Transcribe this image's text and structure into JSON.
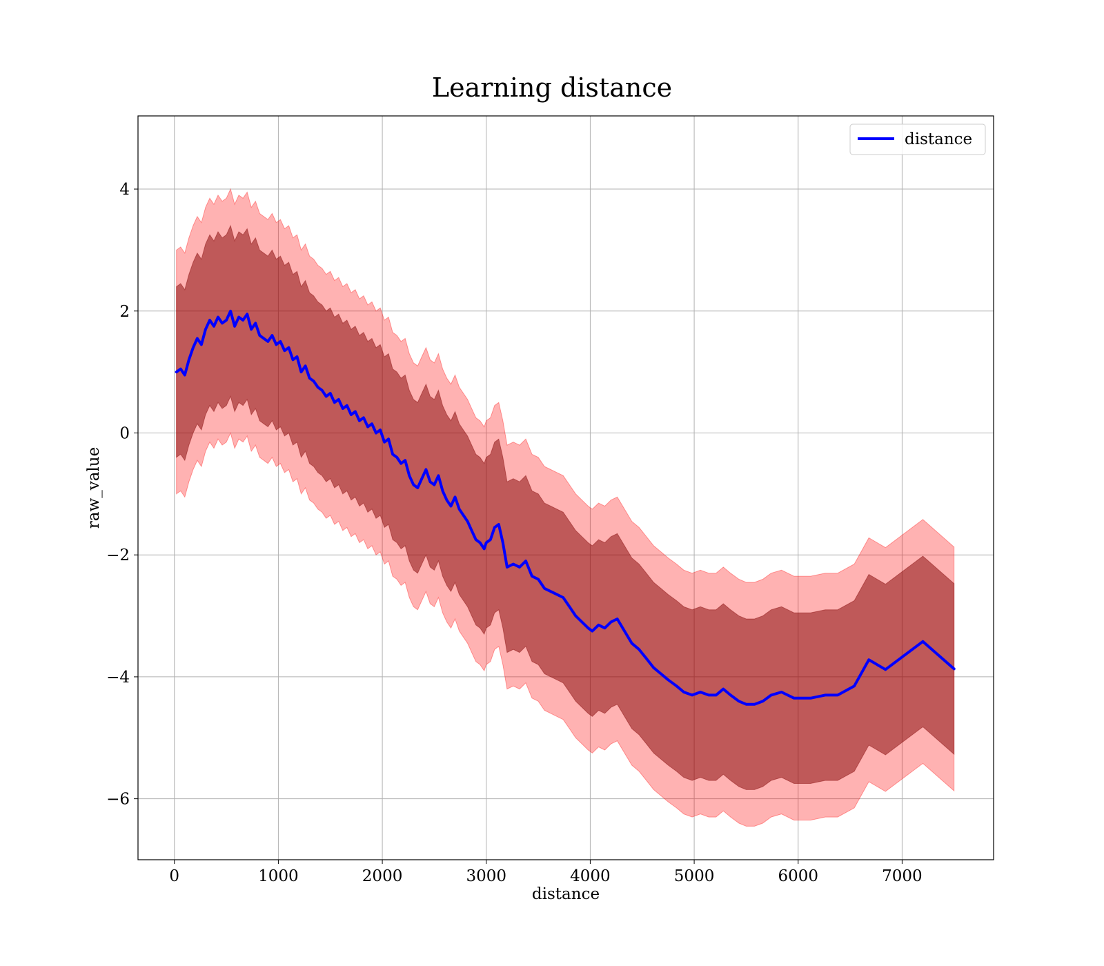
{
  "chart_data": {
    "type": "line",
    "title": "Learning distance",
    "xlabel": "distance",
    "ylabel": "raw_value",
    "xlim": [
      -350,
      7880
    ],
    "ylim": [
      -7.0,
      5.2
    ],
    "xticks": [
      {
        "value": 0,
        "label": "0"
      },
      {
        "value": 1000,
        "label": "1000"
      },
      {
        "value": 2000,
        "label": "2000"
      },
      {
        "value": 3000,
        "label": "3000"
      },
      {
        "value": 4000,
        "label": "4000"
      },
      {
        "value": 5000,
        "label": "5000"
      },
      {
        "value": 6000,
        "label": "6000"
      },
      {
        "value": 7000,
        "label": "7000"
      }
    ],
    "yticks": [
      {
        "value": 4,
        "label": "4"
      },
      {
        "value": 2,
        "label": "2"
      },
      {
        "value": 0,
        "label": "0"
      },
      {
        "value": -2,
        "label": "−2"
      },
      {
        "value": -4,
        "label": "−4"
      },
      {
        "value": -6,
        "label": "−6"
      }
    ],
    "grid": true,
    "legend_position": "top-right",
    "colors": {
      "line": "#0000ff",
      "band_outer": "#ff0000",
      "band_inner": "#800000"
    },
    "series": [
      {
        "name": "distance",
        "x": [
          20,
          60,
          100,
          140,
          180,
          220,
          260,
          300,
          340,
          380,
          420,
          460,
          500,
          540,
          580,
          620,
          660,
          700,
          740,
          780,
          820,
          860,
          900,
          940,
          980,
          1020,
          1060,
          1100,
          1140,
          1180,
          1220,
          1260,
          1300,
          1340,
          1380,
          1420,
          1460,
          1500,
          1540,
          1580,
          1620,
          1660,
          1700,
          1740,
          1780,
          1820,
          1860,
          1900,
          1940,
          1980,
          2020,
          2060,
          2100,
          2140,
          2180,
          2220,
          2260,
          2300,
          2340,
          2380,
          2420,
          2460,
          2500,
          2540,
          2580,
          2620,
          2660,
          2700,
          2740,
          2780,
          2820,
          2860,
          2900,
          2940,
          2980,
          3000,
          3040,
          3080,
          3120,
          3160,
          3200,
          3260,
          3320,
          3380,
          3440,
          3500,
          3560,
          3620,
          3680,
          3740,
          3800,
          3860,
          3920,
          3980,
          4020,
          4080,
          4140,
          4200,
          4260,
          4330,
          4400,
          4470,
          4540,
          4610,
          4680,
          4750,
          4830,
          4900,
          4980,
          5060,
          5140,
          5210,
          5280,
          5350,
          5430,
          5500,
          5580,
          5660,
          5740,
          5840,
          5960,
          6120,
          6260,
          6380,
          6540,
          6680,
          6840,
          7200,
          7500
        ],
        "y": [
          1.0,
          1.05,
          0.95,
          1.2,
          1.4,
          1.55,
          1.45,
          1.7,
          1.85,
          1.75,
          1.9,
          1.8,
          1.85,
          2.0,
          1.75,
          1.9,
          1.85,
          1.95,
          1.7,
          1.8,
          1.6,
          1.55,
          1.5,
          1.6,
          1.45,
          1.5,
          1.35,
          1.4,
          1.2,
          1.25,
          1.0,
          1.1,
          0.9,
          0.85,
          0.75,
          0.7,
          0.6,
          0.65,
          0.5,
          0.55,
          0.4,
          0.45,
          0.3,
          0.35,
          0.2,
          0.25,
          0.1,
          0.15,
          0.0,
          0.05,
          -0.15,
          -0.1,
          -0.35,
          -0.4,
          -0.5,
          -0.45,
          -0.7,
          -0.85,
          -0.9,
          -0.75,
          -0.6,
          -0.8,
          -0.85,
          -0.7,
          -0.95,
          -1.1,
          -1.2,
          -1.05,
          -1.25,
          -1.35,
          -1.45,
          -1.6,
          -1.75,
          -1.8,
          -1.9,
          -1.8,
          -1.75,
          -1.55,
          -1.5,
          -1.8,
          -2.2,
          -2.15,
          -2.2,
          -2.1,
          -2.35,
          -2.4,
          -2.55,
          -2.6,
          -2.65,
          -2.7,
          -2.85,
          -3.0,
          -3.1,
          -3.2,
          -3.25,
          -3.15,
          -3.2,
          -3.1,
          -3.05,
          -3.25,
          -3.45,
          -3.55,
          -3.7,
          -3.85,
          -3.95,
          -4.05,
          -4.15,
          -4.25,
          -4.3,
          -4.25,
          -4.3,
          -4.3,
          -4.2,
          -4.3,
          -4.4,
          -4.45,
          -4.45,
          -4.4,
          -4.3,
          -4.25,
          -4.35,
          -4.35,
          -4.3,
          -4.3,
          -4.15,
          -3.72,
          -3.88,
          -3.42,
          -3.87
        ]
      }
    ],
    "band_half_width_inner": 1.4,
    "band_half_width_outer": 2.0
  }
}
